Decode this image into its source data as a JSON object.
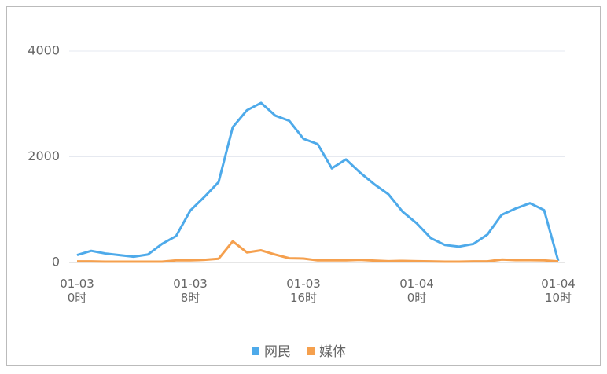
{
  "chart_data": {
    "type": "line",
    "categories": [
      "01-03 0时",
      null,
      null,
      null,
      null,
      null,
      null,
      null,
      "01-03 8时",
      null,
      null,
      null,
      null,
      null,
      null,
      null,
      "01-03 16时",
      null,
      null,
      null,
      null,
      null,
      null,
      null,
      "01-04 0时",
      null,
      null,
      null,
      null,
      null,
      null,
      null,
      null,
      null,
      "01-04 10时"
    ],
    "series": [
      {
        "name": "网民",
        "color": "#4eaaea",
        "values": [
          140,
          220,
          170,
          140,
          110,
          150,
          350,
          500,
          980,
          1240,
          1520,
          2560,
          2880,
          3020,
          2780,
          2680,
          2340,
          2240,
          1780,
          1950,
          1700,
          1480,
          1290,
          960,
          740,
          460,
          330,
          300,
          350,
          530,
          900,
          1020,
          1120,
          990,
          30
        ]
      },
      {
        "name": "媒体",
        "color": "#f5a04e",
        "values": [
          20,
          20,
          15,
          15,
          15,
          15,
          15,
          40,
          40,
          50,
          70,
          400,
          190,
          230,
          150,
          80,
          75,
          40,
          40,
          40,
          50,
          35,
          25,
          30,
          25,
          20,
          15,
          15,
          20,
          20,
          55,
          45,
          45,
          40,
          20
        ]
      }
    ],
    "ylim": [
      0,
      4000
    ],
    "yticks": [
      0,
      2000,
      4000
    ],
    "grid": true,
    "legend": "bottom"
  }
}
